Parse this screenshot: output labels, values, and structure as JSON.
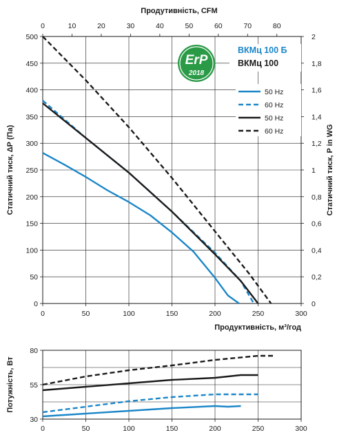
{
  "chart_data": [
    {
      "type": "line",
      "title": "",
      "xlabel": "Продуктивність, м³/год",
      "ylabel": "Статичний тиск, ΔР (Па)",
      "x2label": "Продутивність, CFM",
      "y2label": "Статичний тиск, P in WG",
      "xlim": [
        0,
        300
      ],
      "ylim": [
        0,
        500
      ],
      "x2lim": [
        0,
        88.3
      ],
      "y2lim": [
        0,
        2.0
      ],
      "x_ticks": [
        "0",
        "50",
        "100",
        "150",
        "200",
        "250",
        "300"
      ],
      "y_ticks": [
        "0",
        "50",
        "100",
        "150",
        "200",
        "250",
        "300",
        "350",
        "400",
        "450",
        "500"
      ],
      "x2_ticks": [
        "0",
        "10",
        "20",
        "30",
        "40",
        "50",
        "60",
        "70",
        "80"
      ],
      "y2_ticks": [
        "0",
        "0,2",
        "0,4",
        "0,6",
        "0,8",
        "1",
        "1,2",
        "1,4",
        "1,6",
        "1,8",
        "2"
      ],
      "grid": true,
      "legend_position": "top-right",
      "badge": {
        "text": "ErP",
        "year": "2018",
        "color": "#2a9a46"
      },
      "legend_groups": [
        {
          "label": "ВКМц 100 Б",
          "color": "#1a86c8"
        },
        {
          "label": "ВКМц 100",
          "color": "#1a1a1a"
        }
      ],
      "series": [
        {
          "name": "50 Hz",
          "group": "ВКМц 100 Б",
          "color": "#1a86c8",
          "dash": false,
          "x": [
            0,
            25,
            50,
            75,
            100,
            125,
            150,
            175,
            200,
            215,
            228
          ],
          "y": [
            282,
            260,
            237,
            212,
            190,
            165,
            133,
            97,
            48,
            15,
            0
          ]
        },
        {
          "name": "60 Hz",
          "group": "ВКМц 100 Б",
          "color": "#1a86c8",
          "dash": true,
          "x": [
            0,
            50,
            100,
            150,
            200,
            230,
            245
          ],
          "y": [
            380,
            310,
            245,
            172,
            95,
            42,
            0
          ]
        },
        {
          "name": "50 Hz",
          "group": "ВКМц 100",
          "color": "#1a1a1a",
          "dash": false,
          "x": [
            0,
            50,
            100,
            150,
            200,
            230,
            250
          ],
          "y": [
            375,
            310,
            245,
            172,
            92,
            42,
            0
          ]
        },
        {
          "name": "60 Hz",
          "group": "ВКМц 100",
          "color": "#1a1a1a",
          "dash": true,
          "x": [
            0,
            50,
            100,
            150,
            200,
            240,
            265
          ],
          "y": [
            500,
            418,
            330,
            235,
            135,
            55,
            0
          ]
        }
      ]
    },
    {
      "type": "line",
      "title": "",
      "xlabel": "",
      "ylabel": "Потужність, Вт",
      "xlim": [
        0,
        300
      ],
      "ylim": [
        30,
        80
      ],
      "x_ticks": [
        "0",
        "50",
        "100",
        "150",
        "200",
        "250",
        "300"
      ],
      "y_ticks": [
        "30",
        "55",
        "80"
      ],
      "grid": true,
      "series": [
        {
          "name": "50 Hz",
          "group": "ВКМц 100 Б",
          "color": "#1a86c8",
          "dash": false,
          "x": [
            0,
            50,
            100,
            150,
            200,
            215,
            230
          ],
          "y": [
            32,
            34,
            36,
            38,
            39.5,
            39,
            39.5
          ]
        },
        {
          "name": "60 Hz",
          "group": "ВКМц 100 Б",
          "color": "#1a86c8",
          "dash": true,
          "x": [
            0,
            50,
            100,
            150,
            200,
            250
          ],
          "y": [
            35,
            39,
            43,
            46,
            48,
            48
          ]
        },
        {
          "name": "50 Hz",
          "group": "ВКМц 100",
          "color": "#1a1a1a",
          "dash": false,
          "x": [
            0,
            50,
            100,
            150,
            200,
            230,
            250
          ],
          "y": [
            51,
            53.5,
            56,
            58.5,
            60,
            62,
            62
          ]
        },
        {
          "name": "60 Hz",
          "group": "ВКМц 100",
          "color": "#1a1a1a",
          "dash": true,
          "x": [
            0,
            50,
            100,
            150,
            200,
            250,
            270
          ],
          "y": [
            55,
            61,
            65.5,
            69,
            73,
            76,
            76
          ]
        }
      ]
    }
  ]
}
